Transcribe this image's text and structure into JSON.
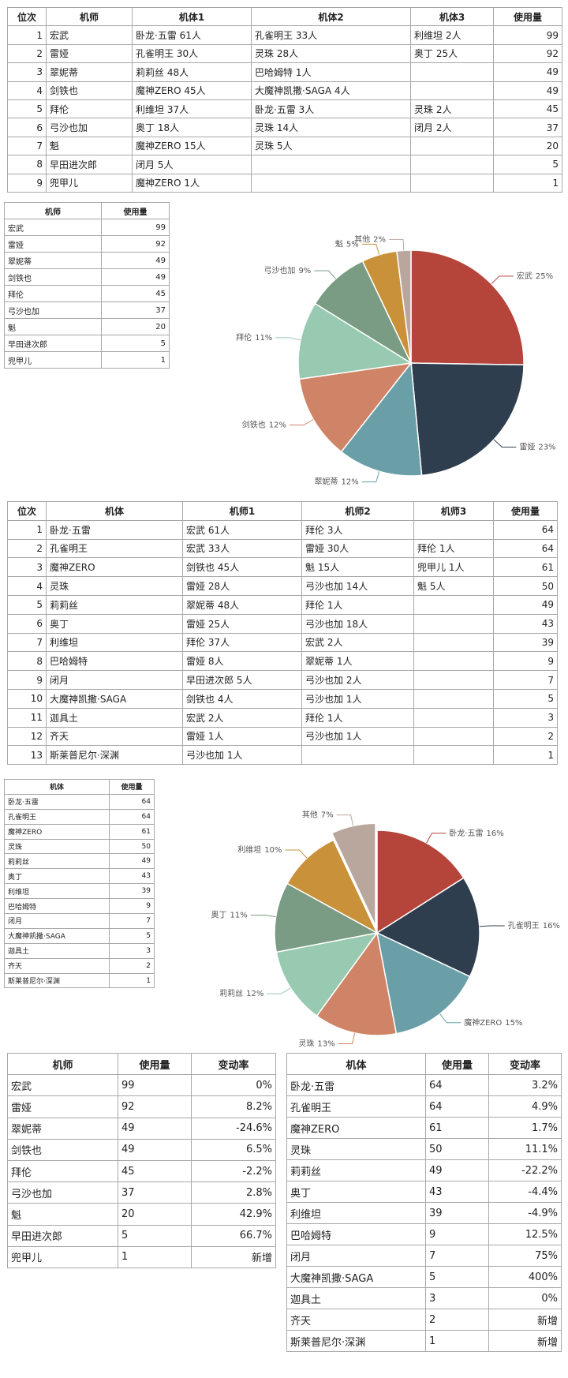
{
  "pilot_ranking": {
    "headers": [
      "位次",
      "机师",
      "机体1",
      "机体2",
      "机体3",
      "使用量"
    ],
    "rows": [
      [
        1,
        "宏武",
        "卧龙·五雷 61人",
        "孔雀明王 33人",
        "利维坦 2人",
        99
      ],
      [
        2,
        "雷娅",
        "孔雀明王 30人",
        "灵珠 28人",
        "奥丁 25人",
        92
      ],
      [
        3,
        "翠妮蒂",
        "莉莉丝 48人",
        "巴哈姆特 1人",
        null,
        49
      ],
      [
        4,
        "剑铁也",
        "魔神ZERO 45人",
        "大魔神凯撒·SAGA 4人",
        null,
        49
      ],
      [
        5,
        "拜伦",
        "利维坦 37人",
        "卧龙·五雷 3人",
        "灵珠 2人",
        45
      ],
      [
        6,
        "弓沙也加",
        "奥丁 18人",
        "灵珠 14人",
        "闭月 2人",
        37
      ],
      [
        7,
        "魁",
        "魔神ZERO 15人",
        "灵珠 5人",
        null,
        20
      ],
      [
        8,
        "早田进次郎",
        "闭月 5人",
        null,
        null,
        5
      ],
      [
        9,
        "兜甲儿",
        "魔神ZERO 1人",
        null,
        null,
        1
      ]
    ]
  },
  "pilot_usage": {
    "headers": [
      "机师",
      "使用量"
    ],
    "rows": [
      [
        "宏武",
        99
      ],
      [
        "雷娅",
        92
      ],
      [
        "翠妮蒂",
        49
      ],
      [
        "剑铁也",
        49
      ],
      [
        "拜伦",
        45
      ],
      [
        "弓沙也加",
        37
      ],
      [
        "魁",
        20
      ],
      [
        "早田进次郎",
        5
      ],
      [
        "兜甲儿",
        1
      ]
    ]
  },
  "chart_data": [
    {
      "type": "pie",
      "categories": [
        "宏武",
        "雷娅",
        "翠妮蒂",
        "剑铁也",
        "拜伦",
        "弓沙也加",
        "魁",
        "其他"
      ],
      "values": [
        25,
        23,
        12,
        12,
        11,
        9,
        5,
        2
      ],
      "value_labels": [
        "25%",
        "23%",
        "12%",
        "12%",
        "11%",
        "9%",
        "5%",
        "2%"
      ],
      "colors": [
        "#b5443a",
        "#2f3e4e",
        "#6a9fa8",
        "#cf8468",
        "#98c9b1",
        "#7a9b84",
        "#c9913a",
        "#b9a79e"
      ],
      "explode": [
        false,
        false,
        false,
        false,
        false,
        false,
        false,
        false
      ]
    },
    {
      "type": "pie",
      "categories": [
        "卧龙·五雷",
        "孔雀明王",
        "魔神ZERO",
        "灵珠",
        "莉莉丝",
        "奥丁",
        "利维坦",
        "其他"
      ],
      "values": [
        16,
        16,
        15,
        13,
        12,
        11,
        10,
        7
      ],
      "value_labels": [
        "16%",
        "16%",
        "15%",
        "13%",
        "12%",
        "11%",
        "10%",
        "7%"
      ],
      "colors": [
        "#b5443a",
        "#2f3e4e",
        "#6a9fa8",
        "#cf8468",
        "#98c9b1",
        "#7a9b84",
        "#c9913a",
        "#b9a79e"
      ],
      "explode": [
        false,
        false,
        false,
        false,
        false,
        false,
        false,
        true
      ]
    }
  ],
  "unit_ranking": {
    "headers": [
      "位次",
      "机体",
      "机师1",
      "机师2",
      "机师3",
      "使用量"
    ],
    "rows": [
      [
        1,
        "卧龙·五雷",
        "宏武 61人",
        "拜伦 3人",
        null,
        64
      ],
      [
        2,
        "孔雀明王",
        "宏武 33人",
        "雷娅 30人",
        "拜伦 1人",
        64
      ],
      [
        3,
        "魔神ZERO",
        "剑铁也 45人",
        "魁 15人",
        "兜甲儿 1人",
        61
      ],
      [
        4,
        "灵珠",
        "雷娅 28人",
        "弓沙也加 14人",
        "魁 5人",
        50
      ],
      [
        5,
        "莉莉丝",
        "翠妮蒂 48人",
        "拜伦 1人",
        null,
        49
      ],
      [
        6,
        "奥丁",
        "雷娅 25人",
        "弓沙也加 18人",
        null,
        43
      ],
      [
        7,
        "利维坦",
        "拜伦 37人",
        "宏武 2人",
        null,
        39
      ],
      [
        8,
        "巴哈姆特",
        "雷娅 8人",
        "翠妮蒂 1人",
        null,
        9
      ],
      [
        9,
        "闭月",
        "早田进次郎 5人",
        "弓沙也加 2人",
        null,
        7
      ],
      [
        10,
        "大魔神凯撒·SAGA",
        "剑铁也 4人",
        "弓沙也加 1人",
        null,
        5
      ],
      [
        11,
        "迦具土",
        "宏武 2人",
        "拜伦 1人",
        null,
        3
      ],
      [
        12,
        "齐天",
        "雷娅 1人",
        "弓沙也加 1人",
        null,
        2
      ],
      [
        13,
        "斯莱普尼尔·深渊",
        "弓沙也加 1人",
        null,
        null,
        1
      ]
    ]
  },
  "unit_usage": {
    "headers": [
      "机体",
      "使用量"
    ],
    "rows": [
      [
        "卧龙·五雷",
        64
      ],
      [
        "孔雀明王",
        64
      ],
      [
        "魔神ZERO",
        61
      ],
      [
        "灵珠",
        50
      ],
      [
        "莉莉丝",
        49
      ],
      [
        "奥丁",
        43
      ],
      [
        "利维坦",
        39
      ],
      [
        "巴哈姆特",
        9
      ],
      [
        "闭月",
        7
      ],
      [
        "大魔神凯撒·SAGA",
        5
      ],
      [
        "迦具土",
        3
      ],
      [
        "齐天",
        2
      ],
      [
        "斯莱普尼尔·深渊",
        1
      ]
    ]
  },
  "pilot_change": {
    "headers": [
      "机师",
      "使用量",
      "变动率"
    ],
    "rows": [
      [
        "宏武",
        99,
        "0%"
      ],
      [
        "雷娅",
        92,
        "8.2%"
      ],
      [
        "翠妮蒂",
        49,
        "-24.6%"
      ],
      [
        "剑铁也",
        49,
        "6.5%"
      ],
      [
        "拜伦",
        45,
        "-2.2%"
      ],
      [
        "弓沙也加",
        37,
        "2.8%"
      ],
      [
        "魁",
        20,
        "42.9%"
      ],
      [
        "早田进次郎",
        5,
        "66.7%"
      ],
      [
        "兜甲儿",
        1,
        "新增"
      ]
    ]
  },
  "unit_change": {
    "headers": [
      "机体",
      "使用量",
      "变动率"
    ],
    "rows": [
      [
        "卧龙·五雷",
        64,
        "3.2%"
      ],
      [
        "孔雀明王",
        64,
        "4.9%"
      ],
      [
        "魔神ZERO",
        61,
        "1.7%"
      ],
      [
        "灵珠",
        50,
        "11.1%"
      ],
      [
        "莉莉丝",
        49,
        "-22.2%"
      ],
      [
        "奥丁",
        43,
        "-4.4%"
      ],
      [
        "利维坦",
        39,
        "-4.9%"
      ],
      [
        "巴哈姆特",
        9,
        "12.5%"
      ],
      [
        "闭月",
        7,
        "75%"
      ],
      [
        "大魔神凯撒·SAGA",
        5,
        "400%"
      ],
      [
        "迦具土",
        3,
        "0%"
      ],
      [
        "齐天",
        2,
        "新增"
      ],
      [
        "斯莱普尼尔·深渊",
        1,
        "新增"
      ]
    ]
  }
}
